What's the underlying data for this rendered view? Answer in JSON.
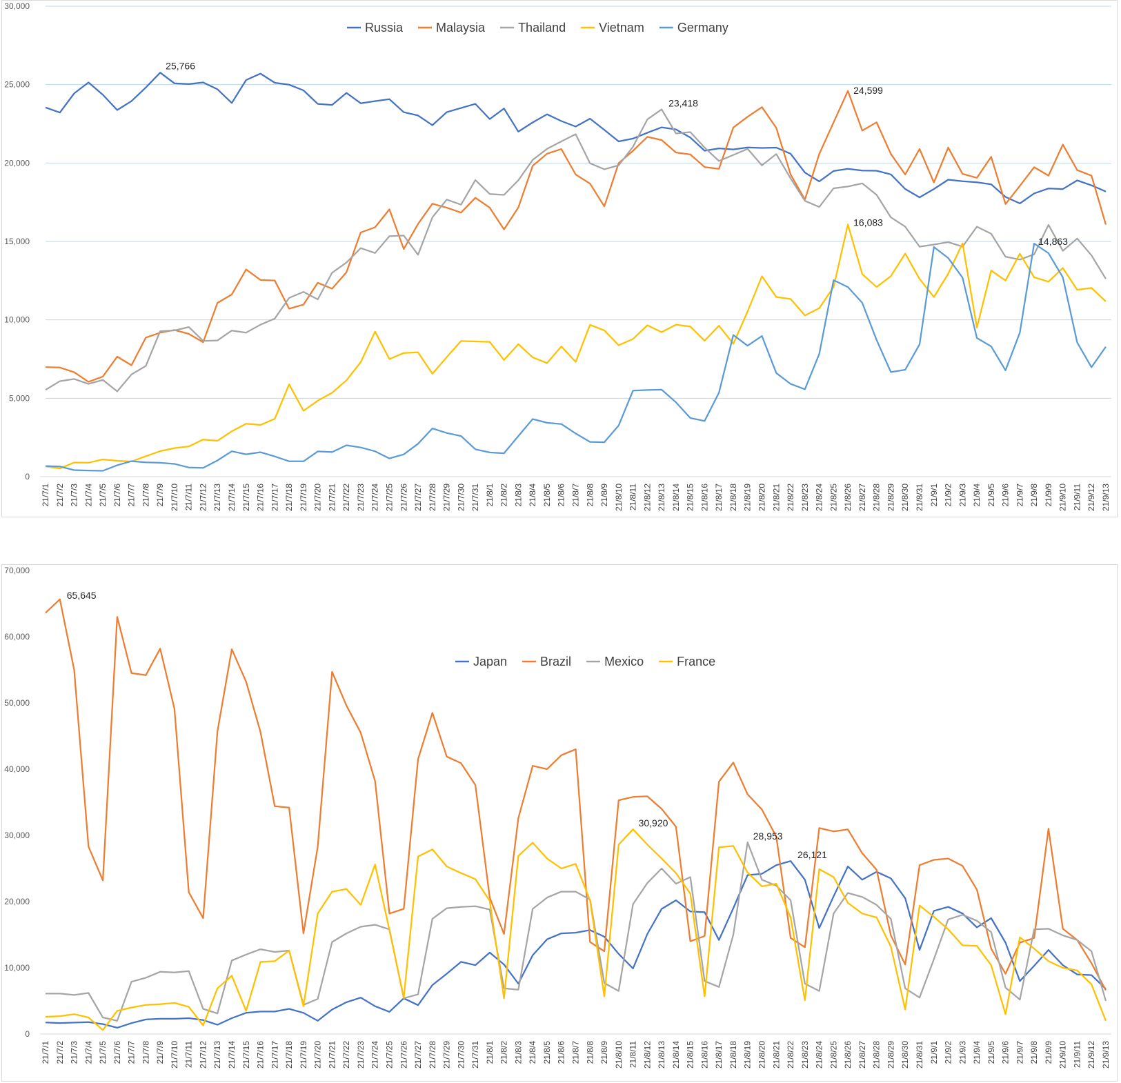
{
  "charts": [
    {
      "type": "line",
      "ylim": [
        0,
        30000
      ],
      "yticks": [
        "0",
        "5,000",
        "10,000",
        "15,000",
        "20,000",
        "25,000",
        "30,000"
      ],
      "legend": {
        "placement": "top-center",
        "entries": [
          "Russia",
          "Malaysia",
          "Thailand",
          "Vietnam",
          "Germany"
        ]
      },
      "grid": true,
      "categories": [
        "21/7/1",
        "21/7/2",
        "21/7/3",
        "21/7/4",
        "21/7/5",
        "21/7/6",
        "21/7/7",
        "21/7/8",
        "21/7/9",
        "21/7/10",
        "21/7/11",
        "21/7/12",
        "21/7/13",
        "21/7/14",
        "21/7/15",
        "21/7/16",
        "21/7/17",
        "21/7/18",
        "21/7/19",
        "21/7/20",
        "21/7/21",
        "21/7/22",
        "21/7/23",
        "21/7/24",
        "21/7/25",
        "21/7/26",
        "21/7/27",
        "21/7/28",
        "21/7/29",
        "21/7/30",
        "21/7/31",
        "21/8/1",
        "21/8/2",
        "21/8/3",
        "21/8/4",
        "21/8/5",
        "21/8/6",
        "21/8/7",
        "21/8/8",
        "21/8/9",
        "21/8/10",
        "21/8/11",
        "21/8/12",
        "21/8/13",
        "21/8/14",
        "21/8/15",
        "21/8/16",
        "21/8/17",
        "21/8/18",
        "21/8/19",
        "21/8/20",
        "21/8/21",
        "21/8/22",
        "21/8/23",
        "21/8/24",
        "21/8/25",
        "21/8/26",
        "21/8/27",
        "21/8/28",
        "21/8/29",
        "21/8/30",
        "21/8/31",
        "21/9/1",
        "21/9/2",
        "21/9/3",
        "21/9/4",
        "21/9/5",
        "21/9/6",
        "21/9/7",
        "21/9/8",
        "21/9/9",
        "21/9/10",
        "21/9/11",
        "21/9/12",
        "21/9/13"
      ],
      "series": [
        {
          "name": "Russia",
          "color": "#4472c4",
          "values": [
            23543,
            23218,
            24439,
            25140,
            24353,
            23378,
            23947,
            24818,
            25766,
            25082,
            25033,
            25140,
            24702,
            23827,
            25293,
            25704,
            25117,
            24992,
            24633,
            23770,
            23704,
            24471,
            23811,
            23947,
            24072,
            23239,
            23032,
            22410,
            23244,
            23508,
            23771,
            22804,
            23475,
            22002,
            22589,
            23106,
            22678,
            22322,
            22829,
            22112,
            21378,
            21559,
            21932,
            22275,
            22144,
            21624,
            20785,
            20935,
            20867,
            20992,
            20959,
            20983,
            20593,
            19388,
            18828,
            19492,
            19627,
            19519,
            19510,
            19277,
            18345,
            17813,
            18341,
            18936,
            18841,
            18770,
            18641,
            17837,
            17425,
            18063,
            18380,
            18340,
            18891,
            18578,
            18184
          ]
        },
        {
          "name": "Malaysia",
          "color": "#ed7d31",
          "values": [
            6982,
            6960,
            6658,
            6045,
            6387,
            7654,
            7105,
            8868,
            9180,
            9353,
            9105,
            8574,
            11079,
            11618,
            13215,
            12541,
            12510,
            10710,
            10972,
            12366,
            11985,
            13034,
            15573,
            15902,
            17045,
            14516,
            16117,
            17405,
            17150,
            16840,
            17786,
            17150,
            15764,
            17170,
            19819,
            20596,
            20889,
            19268,
            18688,
            17236,
            19991,
            20780,
            21668,
            21468,
            20670,
            20546,
            19740,
            19631,
            22262,
            22948,
            23564,
            22242,
            19268,
            17672,
            20579,
            22597,
            24599,
            22070,
            22597,
            20579,
            19268,
            20896,
            18762,
            20988,
            19307,
            19057,
            20396,
            17384,
            18547,
            19733,
            19198,
            21176,
            19550,
            19198,
            16073
          ]
        },
        {
          "name": "Thailand",
          "color": "#a5a5a5",
          "values": [
            5533,
            6087,
            6230,
            5916,
            6166,
            5435,
            6519,
            7058,
            9276,
            9326,
            9539,
            8656,
            8685,
            9317,
            9186,
            9692,
            10082,
            11397,
            11784,
            11305,
            13002,
            13655,
            14575,
            14260,
            15335,
            15376,
            14150,
            16533,
            17669,
            17345,
            18912,
            18027,
            17970,
            18901,
            20200,
            20902,
            21379,
            21838,
            19983,
            19603,
            19851,
            21038,
            22782,
            23418,
            21882,
            21972,
            20987,
            20128,
            20515,
            20902,
            19851,
            20575,
            19014,
            17587,
            17198,
            18387,
            18501,
            18702,
            17970,
            16536,
            15942,
            14666,
            14802,
            14955,
            14666,
            15942,
            15487,
            14029,
            13842,
            14176,
            16057,
            14403,
            15185,
            14110,
            12617
          ]
        },
        {
          "name": "Vietnam",
          "color": "#ffc000",
          "values": [
            657,
            524,
            903,
            889,
            1099,
            1011,
            966,
            1307,
            1628,
            1821,
            1930,
            2366,
            2286,
            2894,
            3375,
            3297,
            3687,
            5887,
            4203,
            4842,
            5348,
            6145,
            7301,
            9251,
            7502,
            7887,
            7930,
            6561,
            7622,
            8649,
            8620,
            8597,
            7445,
            8450,
            7606,
            7244,
            8307,
            7321,
            9683,
            9332,
            8380,
            8780,
            9656,
            9215,
            9696,
            9573,
            8669,
            9623,
            8470,
            10536,
            12780,
            11461,
            11326,
            10280,
            10748,
            12096,
            16083,
            12920,
            12093,
            12788,
            14224,
            12611,
            11455,
            12935,
            14882,
            9507,
            13143,
            12506,
            14219,
            12712,
            12434,
            13308,
            11915,
            12036,
            11172
          ]
        },
        {
          "name": "Germany",
          "color": "#5b9bd5",
          "values": [
            679,
            648,
            416,
            390,
            375,
            730,
            985,
            915,
            886,
            815,
            584,
            563,
            1033,
            1617,
            1426,
            1560,
            1287,
            980,
            977,
            1608,
            1565,
            2000,
            1861,
            1617,
            1163,
            1421,
            2097,
            3074,
            2783,
            2589,
            1747,
            1545,
            1492,
            2593,
            3674,
            3435,
            3355,
            2755,
            2217,
            2196,
            3263,
            5484,
            5525,
            5549,
            4740,
            3738,
            3549,
            5358,
            9030,
            8348,
            8968,
            6608,
            5910,
            5572,
            7830,
            12531,
            12094,
            11083,
            8719,
            6667,
            6817,
            8438,
            14644,
            13945,
            12692,
            8840,
            8306,
            6780,
            9188,
            14863,
            14251,
            12710,
            8557,
            6978,
            8287
          ]
        }
      ],
      "annotations": [
        {
          "text": "25,766",
          "series": "Russia",
          "x": "21/7/9",
          "y": 25766
        },
        {
          "text": "23,418",
          "series": "Thailand",
          "x": "21/8/13",
          "y": 23418
        },
        {
          "text": "24,599",
          "series": "Malaysia",
          "x": "21/8/26",
          "y": 24599
        },
        {
          "text": "16,083",
          "series": "Vietnam",
          "x": "21/8/26",
          "y": 16083
        },
        {
          "text": "14,863",
          "series": "Germany",
          "x": "21/9/8",
          "y": 14863
        }
      ]
    },
    {
      "type": "line",
      "ylim": [
        0,
        70000
      ],
      "yticks": [
        "0",
        "10,000",
        "20,000",
        "30,000",
        "40,000",
        "50,000",
        "60,000",
        "70,000"
      ],
      "legend": {
        "placement": "upper-center",
        "entries": [
          "Japan",
          "Brazil",
          "Mexico",
          "France"
        ]
      },
      "grid": false,
      "categories": [
        "21/7/1",
        "21/7/2",
        "21/7/3",
        "21/7/4",
        "21/7/5",
        "21/7/6",
        "21/7/7",
        "21/7/8",
        "21/7/9",
        "21/7/10",
        "21/7/11",
        "21/7/12",
        "21/7/13",
        "21/7/14",
        "21/7/15",
        "21/7/16",
        "21/7/17",
        "21/7/18",
        "21/7/19",
        "21/7/20",
        "21/7/21",
        "21/7/22",
        "21/7/23",
        "21/7/24",
        "21/7/25",
        "21/7/26",
        "21/7/27",
        "21/7/28",
        "21/7/29",
        "21/7/30",
        "21/7/31",
        "21/8/1",
        "21/8/2",
        "21/8/3",
        "21/8/4",
        "21/8/5",
        "21/8/6",
        "21/8/7",
        "21/8/8",
        "21/8/9",
        "21/8/10",
        "21/8/11",
        "21/8/12",
        "21/8/13",
        "21/8/14",
        "21/8/15",
        "21/8/16",
        "21/8/17",
        "21/8/18",
        "21/8/19",
        "21/8/20",
        "21/8/21",
        "21/8/22",
        "21/8/23",
        "21/8/24",
        "21/8/25",
        "21/8/26",
        "21/8/27",
        "21/8/28",
        "21/8/29",
        "21/8/30",
        "21/8/31",
        "21/9/1",
        "21/9/2",
        "21/9/3",
        "21/9/4",
        "21/9/5",
        "21/9/6",
        "21/9/7",
        "21/9/8",
        "21/9/9",
        "21/9/10",
        "21/9/11",
        "21/9/12",
        "21/9/13"
      ],
      "series": [
        {
          "name": "Japan",
          "color": "#4472c4",
          "values": [
            1750,
            1655,
            1730,
            1800,
            1500,
            950,
            1650,
            2200,
            2300,
            2300,
            2400,
            2100,
            1400,
            2400,
            3200,
            3400,
            3400,
            3800,
            3200,
            2000,
            3700,
            4800,
            5500,
            4200,
            3350,
            5400,
            4350,
            7400,
            9100,
            10900,
            10400,
            12300,
            10500,
            7600,
            11900,
            14300,
            15200,
            15300,
            15700,
            14700,
            12100,
            9900,
            15100,
            18900,
            20200,
            18500,
            18400,
            14200,
            19000,
            24000,
            24200,
            25500,
            26121,
            23300,
            16000,
            20800,
            25300,
            23300,
            24500,
            23500,
            20500,
            12700,
            18600,
            19200,
            18200,
            16100,
            17500,
            13800,
            8000,
            10300,
            12700,
            10400,
            9000,
            8900,
            6800
          ]
        },
        {
          "name": "Brazil",
          "color": "#ed7d31",
          "values": [
            63600,
            65645,
            55000,
            28300,
            23200,
            63000,
            54500,
            54200,
            58200,
            49100,
            21400,
            17500,
            45700,
            58100,
            53200,
            45600,
            34400,
            34200,
            15200,
            28300,
            54700,
            49600,
            45500,
            38200,
            18200,
            18900,
            41500,
            48500,
            41900,
            40900,
            37600,
            20600,
            15100,
            32600,
            40500,
            40000,
            42100,
            43000,
            13900,
            12500,
            35300,
            35800,
            35900,
            34000,
            31300,
            14000,
            14800,
            38100,
            41000,
            36200,
            33900,
            29800,
            14500,
            13100,
            31100,
            30600,
            30900,
            27300,
            24800,
            14900,
            10500,
            25500,
            26300,
            26500,
            25400,
            21800,
            12900,
            9100,
            13800,
            14500,
            31000,
            15900,
            14200,
            10700,
            6600
          ]
        },
        {
          "name": "Mexico",
          "color": "#a5a5a5",
          "values": [
            6100,
            6100,
            5900,
            6200,
            2500,
            2000,
            7900,
            8500,
            9400,
            9300,
            9500,
            3800,
            3100,
            11100,
            12000,
            12800,
            12400,
            12600,
            4400,
            5300,
            13900,
            15200,
            16200,
            16500,
            15800,
            5400,
            6000,
            17400,
            19000,
            19200,
            19300,
            18800,
            6900,
            6700,
            18900,
            20600,
            21500,
            21500,
            20300,
            7700,
            6500,
            19600,
            22800,
            25000,
            22700,
            23700,
            8000,
            7100,
            15000,
            28953,
            23300,
            22400,
            20200,
            7600,
            6500,
            18200,
            21300,
            20700,
            19500,
            17400,
            6900,
            5500,
            11300,
            17300,
            18000,
            17100,
            15400,
            7000,
            5200,
            15800,
            15900,
            14900,
            14200,
            12500,
            5000
          ]
        },
        {
          "name": "France",
          "color": "#ffc000",
          "values": [
            2600,
            2700,
            3000,
            2500,
            600,
            3500,
            4000,
            4400,
            4500,
            4700,
            4100,
            1300,
            6900,
            8800,
            3500,
            10900,
            11000,
            12600,
            4200,
            18200,
            21500,
            21900,
            19500,
            25600,
            15700,
            5500,
            26800,
            27900,
            25300,
            24300,
            23400,
            20100,
            5400,
            26900,
            28900,
            26500,
            25000,
            25700,
            20200,
            5700,
            28600,
            30920,
            28600,
            26500,
            24300,
            21200,
            5700,
            28200,
            28400,
            24400,
            22300,
            22700,
            17600,
            5100,
            24900,
            23700,
            19800,
            18200,
            17600,
            13200,
            3700,
            19400,
            17700,
            15800,
            13400,
            13300,
            10400,
            3000,
            14600,
            12900,
            11000,
            10000,
            9600,
            7500,
            2000
          ]
        }
      ],
      "annotations": [
        {
          "text": "65,645",
          "series": "Brazil",
          "x": "21/7/2",
          "y": 65645
        },
        {
          "text": "30,920",
          "series": "France",
          "x": "21/8/11",
          "y": 30920
        },
        {
          "text": "28,953",
          "series": "Mexico",
          "x": "21/8/19",
          "y": 28953
        },
        {
          "text": "26,121",
          "series": "Japan",
          "x": "21/8/22",
          "y": 26121
        }
      ]
    }
  ]
}
